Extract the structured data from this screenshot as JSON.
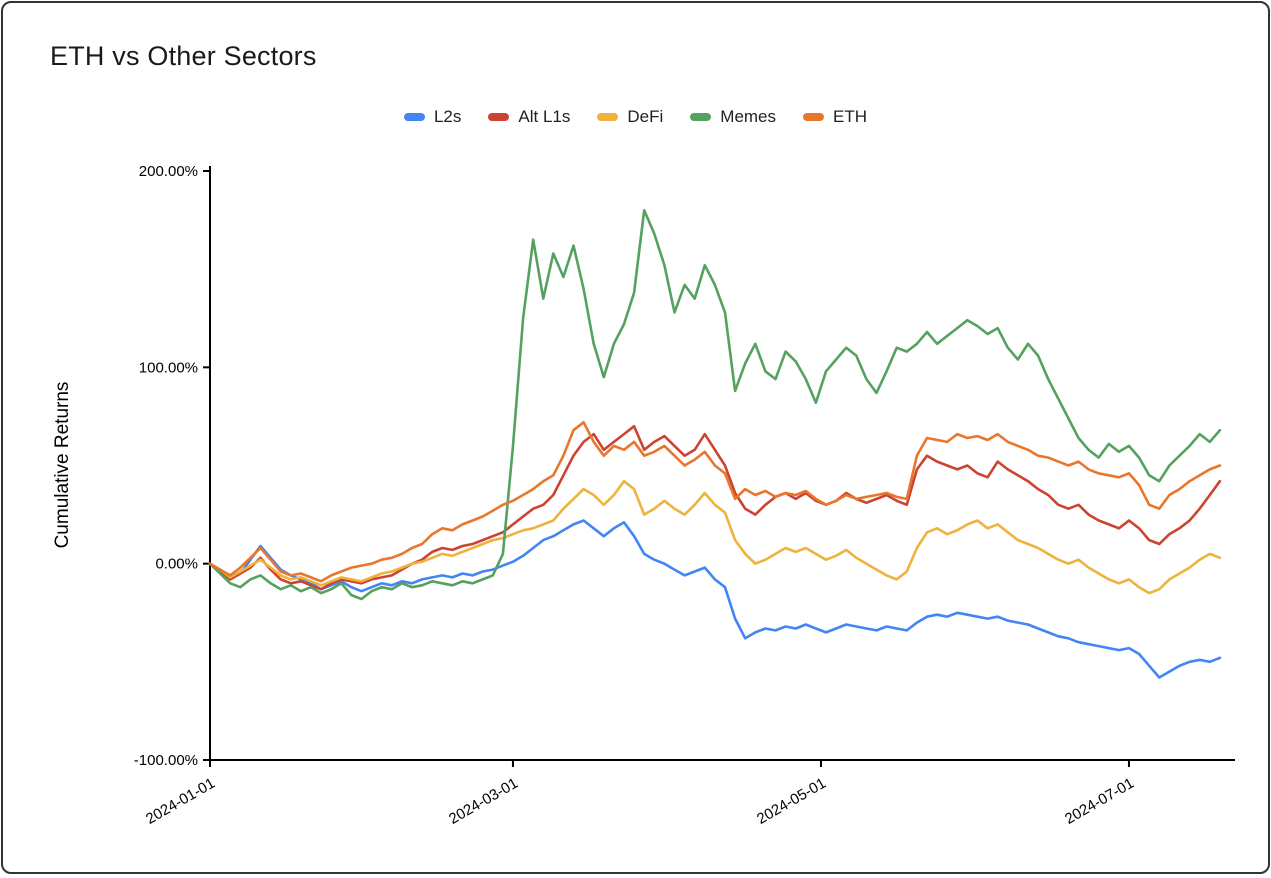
{
  "page": {
    "background": "#ffffff",
    "frame_border": "#333333"
  },
  "chart_data": {
    "type": "line",
    "title": "ETH vs Other Sectors",
    "xlabel": "",
    "ylabel": "Cumulative Returns",
    "grid": false,
    "legend_position": "top",
    "ylim": [
      -100,
      200
    ],
    "y_ticks": [
      {
        "value": 200,
        "label": "200.00%"
      },
      {
        "value": 100,
        "label": "100.00%"
      },
      {
        "value": 0,
        "label": "0.00%"
      },
      {
        "value": -100,
        "label": "-100.00%"
      }
    ],
    "x_ticks": [
      {
        "date": "2024-01-01",
        "label": "2024-01-01"
      },
      {
        "date": "2024-03-01",
        "label": "2024-03-01"
      },
      {
        "date": "2024-05-01",
        "label": "2024-05-01"
      },
      {
        "date": "2024-07-01",
        "label": "2024-07-01"
      }
    ],
    "dates": [
      "2024-01-01",
      "2024-01-03",
      "2024-01-05",
      "2024-01-07",
      "2024-01-09",
      "2024-01-11",
      "2024-01-13",
      "2024-01-15",
      "2024-01-17",
      "2024-01-19",
      "2024-01-21",
      "2024-01-23",
      "2024-01-25",
      "2024-01-27",
      "2024-01-29",
      "2024-01-31",
      "2024-02-02",
      "2024-02-04",
      "2024-02-06",
      "2024-02-08",
      "2024-02-10",
      "2024-02-12",
      "2024-02-14",
      "2024-02-16",
      "2024-02-18",
      "2024-02-20",
      "2024-02-22",
      "2024-02-24",
      "2024-02-26",
      "2024-02-28",
      "2024-03-01",
      "2024-03-03",
      "2024-03-05",
      "2024-03-07",
      "2024-03-09",
      "2024-03-11",
      "2024-03-13",
      "2024-03-15",
      "2024-03-17",
      "2024-03-19",
      "2024-03-21",
      "2024-03-23",
      "2024-03-25",
      "2024-03-27",
      "2024-03-29",
      "2024-03-31",
      "2024-04-02",
      "2024-04-04",
      "2024-04-06",
      "2024-04-08",
      "2024-04-10",
      "2024-04-12",
      "2024-04-14",
      "2024-04-16",
      "2024-04-18",
      "2024-04-20",
      "2024-04-22",
      "2024-04-24",
      "2024-04-26",
      "2024-04-28",
      "2024-04-30",
      "2024-05-02",
      "2024-05-04",
      "2024-05-06",
      "2024-05-08",
      "2024-05-10",
      "2024-05-12",
      "2024-05-14",
      "2024-05-16",
      "2024-05-18",
      "2024-05-20",
      "2024-05-22",
      "2024-05-24",
      "2024-05-26",
      "2024-05-28",
      "2024-05-30",
      "2024-06-01",
      "2024-06-03",
      "2024-06-05",
      "2024-06-07",
      "2024-06-09",
      "2024-06-11",
      "2024-06-13",
      "2024-06-15",
      "2024-06-17",
      "2024-06-19",
      "2024-06-21",
      "2024-06-23",
      "2024-06-25",
      "2024-06-27",
      "2024-06-29",
      "2024-07-01",
      "2024-07-03",
      "2024-07-05",
      "2024-07-07",
      "2024-07-09",
      "2024-07-11",
      "2024-07-13",
      "2024-07-15",
      "2024-07-17",
      "2024-07-19"
    ],
    "series": [
      {
        "name": "L2s",
        "color": "#4285F4",
        "values": [
          0,
          -4,
          -8,
          -5,
          2,
          9,
          3,
          -3,
          -6,
          -8,
          -10,
          -13,
          -11,
          -9,
          -12,
          -14,
          -12,
          -10,
          -11,
          -9,
          -10,
          -8,
          -7,
          -6,
          -7,
          -5,
          -6,
          -4,
          -3,
          -1,
          1,
          4,
          8,
          12,
          14,
          17,
          20,
          22,
          18,
          14,
          18,
          21,
          14,
          5,
          2,
          0,
          -3,
          -6,
          -4,
          -2,
          -8,
          -12,
          -28,
          -38,
          -35,
          -33,
          -34,
          -32,
          -33,
          -31,
          -33,
          -35,
          -33,
          -31,
          -32,
          -33,
          -34,
          -32,
          -33,
          -34,
          -30,
          -27,
          -26,
          -27,
          -25,
          -26,
          -27,
          -28,
          -27,
          -29,
          -30,
          -31,
          -33,
          -35,
          -37,
          -38,
          -40,
          -41,
          -42,
          -43,
          -44,
          -43,
          -46,
          -52,
          -58,
          -55,
          -52,
          -50,
          -49,
          -50,
          -48
        ]
      },
      {
        "name": "Alt L1s",
        "color": "#CC4431",
        "values": [
          0,
          -4,
          -8,
          -5,
          -2,
          3,
          -3,
          -8,
          -10,
          -9,
          -11,
          -13,
          -10,
          -8,
          -9,
          -10,
          -8,
          -7,
          -6,
          -3,
          0,
          2,
          6,
          8,
          7,
          9,
          10,
          12,
          14,
          16,
          20,
          24,
          28,
          30,
          35,
          45,
          55,
          62,
          66,
          58,
          62,
          66,
          70,
          58,
          62,
          65,
          60,
          55,
          58,
          66,
          58,
          50,
          36,
          28,
          25,
          30,
          34,
          36,
          33,
          36,
          32,
          30,
          32,
          36,
          33,
          31,
          33,
          35,
          32,
          30,
          48,
          55,
          52,
          50,
          48,
          50,
          46,
          44,
          52,
          48,
          45,
          42,
          38,
          35,
          30,
          28,
          30,
          25,
          22,
          20,
          18,
          22,
          18,
          12,
          10,
          15,
          18,
          22,
          28,
          35,
          42
        ]
      },
      {
        "name": "DeFi",
        "color": "#EDB33C",
        "values": [
          0,
          -3,
          -7,
          -4,
          -1,
          2,
          -2,
          -6,
          -8,
          -7,
          -9,
          -11,
          -9,
          -7,
          -8,
          -9,
          -7,
          -5,
          -4,
          -2,
          0,
          1,
          3,
          5,
          4,
          6,
          8,
          10,
          12,
          13,
          15,
          17,
          18,
          20,
          22,
          28,
          33,
          38,
          35,
          30,
          35,
          42,
          38,
          25,
          28,
          32,
          28,
          25,
          30,
          36,
          30,
          26,
          12,
          5,
          0,
          2,
          5,
          8,
          6,
          8,
          5,
          2,
          4,
          7,
          3,
          0,
          -3,
          -6,
          -8,
          -4,
          8,
          16,
          18,
          15,
          17,
          20,
          22,
          18,
          20,
          16,
          12,
          10,
          8,
          5,
          2,
          0,
          2,
          -2,
          -5,
          -8,
          -10,
          -8,
          -12,
          -15,
          -13,
          -8,
          -5,
          -2,
          2,
          5,
          3
        ]
      },
      {
        "name": "Memes",
        "color": "#55A15F",
        "values": [
          0,
          -5,
          -10,
          -12,
          -8,
          -6,
          -10,
          -13,
          -11,
          -14,
          -12,
          -15,
          -13,
          -10,
          -16,
          -18,
          -14,
          -12,
          -13,
          -10,
          -12,
          -11,
          -9,
          -10,
          -11,
          -9,
          -10,
          -8,
          -6,
          5,
          60,
          125,
          165,
          135,
          158,
          146,
          162,
          140,
          112,
          95,
          112,
          122,
          138,
          180,
          168,
          152,
          128,
          142,
          135,
          152,
          142,
          128,
          88,
          102,
          112,
          98,
          94,
          108,
          103,
          94,
          82,
          98,
          104,
          110,
          106,
          94,
          87,
          98,
          110,
          108,
          112,
          118,
          112,
          116,
          120,
          124,
          121,
          117,
          120,
          110,
          104,
          112,
          106,
          94,
          84,
          74,
          64,
          58,
          54,
          61,
          57,
          60,
          54,
          45,
          42,
          50,
          55,
          60,
          66,
          62,
          68
        ]
      },
      {
        "name": "ETH",
        "color": "#E8762D",
        "values": [
          0,
          -3,
          -6,
          -2,
          3,
          8,
          2,
          -4,
          -6,
          -5,
          -7,
          -9,
          -6,
          -4,
          -2,
          -1,
          0,
          2,
          3,
          5,
          8,
          10,
          15,
          18,
          17,
          20,
          22,
          24,
          27,
          30,
          32,
          35,
          38,
          42,
          45,
          55,
          68,
          72,
          62,
          55,
          60,
          58,
          62,
          55,
          57,
          60,
          55,
          50,
          53,
          57,
          50,
          46,
          33,
          38,
          35,
          37,
          34,
          36,
          35,
          37,
          33,
          30,
          32,
          35,
          33,
          34,
          35,
          36,
          34,
          33,
          55,
          64,
          63,
          62,
          66,
          64,
          65,
          63,
          66,
          62,
          60,
          58,
          55,
          54,
          52,
          50,
          52,
          48,
          46,
          45,
          44,
          46,
          40,
          30,
          28,
          35,
          38,
          42,
          45,
          48,
          50
        ]
      }
    ]
  }
}
